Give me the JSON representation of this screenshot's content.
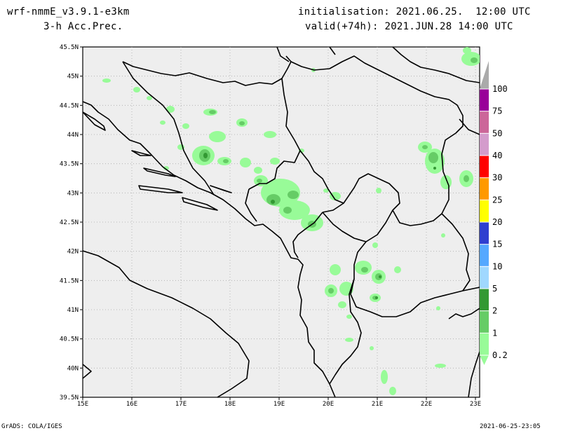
{
  "header": {
    "model": "wrf-nmmE_v3.9.1-e3km",
    "field": "3-h Acc.Prec.",
    "init": "initialisation: 2021.06.25.  12:00 UTC",
    "valid": "valid(+74h): 2021.JUN.28 14:00 UTC"
  },
  "footer": {
    "credit": "GrADS: COLA/IGES",
    "timestamp": "2021-06-25-23:05"
  },
  "axes": {
    "lat_labels": [
      "45.5N",
      "45N",
      "44.5N",
      "44N",
      "43.5N",
      "43N",
      "42.5N",
      "42N",
      "41.5N",
      "41N",
      "40.5N",
      "40N",
      "39.5N"
    ],
    "lon_labels": [
      "15E",
      "16E",
      "17E",
      "18E",
      "19E",
      "20E",
      "21E",
      "22E",
      "23E"
    ]
  },
  "colorbar": {
    "levels": [
      "0.2",
      "1",
      "2",
      "5",
      "10",
      "15",
      "20",
      "25",
      "30",
      "40",
      "50",
      "75",
      "100"
    ],
    "colors": [
      "#98fb98",
      "#66cc66",
      "#339933",
      "#a0d8ff",
      "#55a8ff",
      "#2f3fd0",
      "#ffff00",
      "#ff9900",
      "#ff0000",
      "#d49ccc",
      "#cc6699",
      "#990099",
      "#aaaaaa"
    ]
  },
  "colors": {
    "land": "#eeeeee",
    "light_green": "#98fb98",
    "mid_green": "#66cc66",
    "dark_green": "#339933"
  }
}
